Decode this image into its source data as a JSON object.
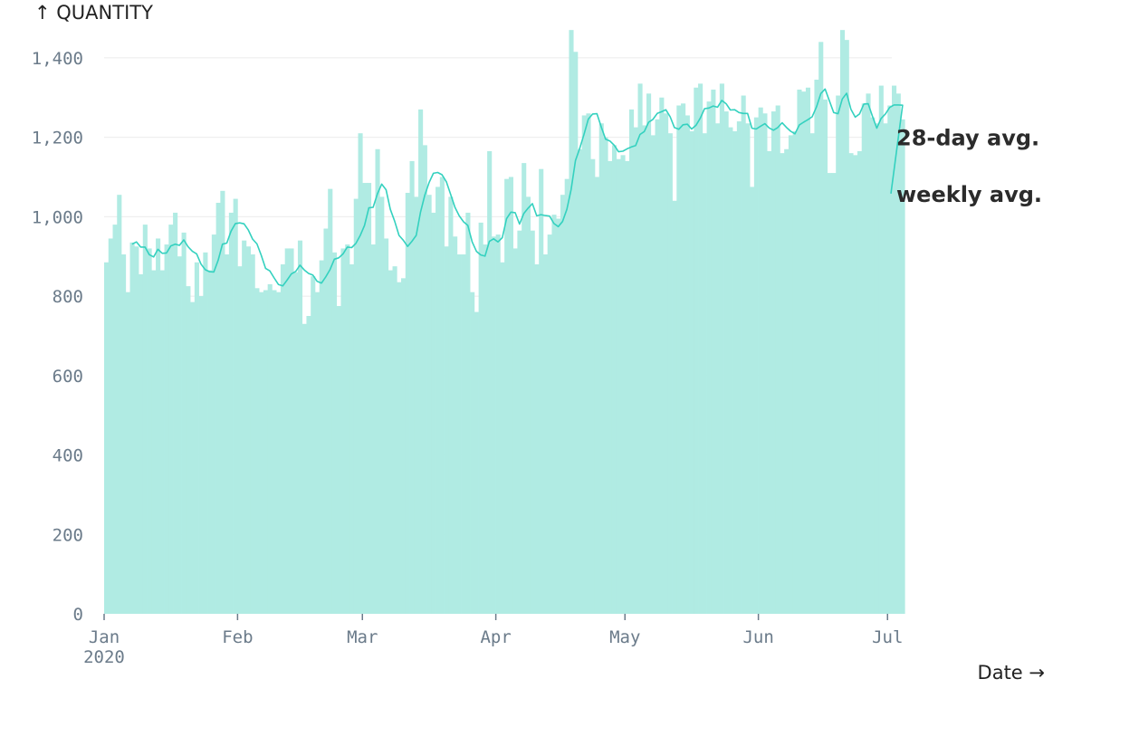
{
  "chart_data": {
    "type": "bar",
    "ylabel": "↑ QUANTITY",
    "xlabel": "Date →",
    "ylim": [
      0,
      1500
    ],
    "yticks": [
      0,
      200,
      400,
      600,
      800,
      1000,
      1200,
      1400
    ],
    "ytick_labels": [
      "0",
      "200",
      "400",
      "600",
      "800",
      "1,000",
      "1,200",
      "1,400"
    ],
    "xticks": [
      {
        "date": "2020-01-01",
        "label": "Jan",
        "sublabel": "2020"
      },
      {
        "date": "2020-02-01",
        "label": "Feb",
        "sublabel": ""
      },
      {
        "date": "2020-03-01",
        "label": "Mar",
        "sublabel": ""
      },
      {
        "date": "2020-04-01",
        "label": "Apr",
        "sublabel": ""
      },
      {
        "date": "2020-05-01",
        "label": "May",
        "sublabel": ""
      },
      {
        "date": "2020-06-01",
        "label": "Jun",
        "sublabel": ""
      },
      {
        "date": "2020-07-01",
        "label": "Jul",
        "sublabel": ""
      }
    ],
    "x_start": "2020-01-01",
    "x_end": "2020-07-02",
    "grid": "horizontal",
    "bar_color": "#b0ebe3",
    "line_color": "#34d1bf",
    "daily_values": [
      885,
      945,
      980,
      1055,
      905,
      810,
      935,
      925,
      855,
      980,
      920,
      865,
      945,
      865,
      930,
      980,
      1010,
      900,
      960,
      825,
      785,
      885,
      800,
      910,
      865,
      955,
      1035,
      1065,
      905,
      1010,
      1045,
      875,
      940,
      925,
      905,
      820,
      810,
      815,
      830,
      815,
      810,
      880,
      920,
      920,
      860,
      940,
      730,
      750,
      850,
      810,
      890,
      970,
      1070,
      910,
      775,
      920,
      930,
      880,
      1045,
      1210,
      1085,
      1085,
      930,
      1170,
      1050,
      945,
      865,
      875,
      835,
      845,
      1060,
      1140,
      1050,
      1270,
      1180,
      1055,
      1010,
      1075,
      1100,
      925,
      1050,
      950,
      905,
      905,
      1010,
      810,
      760,
      985,
      930,
      1165,
      950,
      955,
      885,
      1095,
      1100,
      920,
      965,
      1135,
      1050,
      965,
      880,
      1120,
      905,
      955,
      1005,
      995,
      1055,
      1095,
      1470,
      1415,
      1170,
      1255,
      1260,
      1145,
      1100,
      1235,
      1200,
      1140,
      1180,
      1145,
      1155,
      1140,
      1270,
      1225,
      1335,
      1230,
      1310,
      1205,
      1245,
      1300,
      1260,
      1210,
      1040,
      1280,
      1285,
      1255,
      1215,
      1325,
      1335,
      1210,
      1290,
      1320,
      1235,
      1335,
      1265,
      1225,
      1215,
      1240,
      1305,
      1235,
      1075,
      1250,
      1275,
      1260,
      1165,
      1265,
      1280,
      1160,
      1170,
      1205,
      1215,
      1320,
      1315,
      1325,
      1210,
      1345,
      1440,
      1295,
      1110,
      1110,
      1305,
      1470,
      1445,
      1160,
      1155,
      1165,
      1285,
      1310,
      1250,
      1235,
      1330,
      1235,
      1280,
      1330,
      1310,
      1245
    ],
    "series": [
      {
        "name": "28-day avg.",
        "label_value": 1200
      },
      {
        "name": "weekly avg.",
        "label_value": 1058
      }
    ]
  }
}
